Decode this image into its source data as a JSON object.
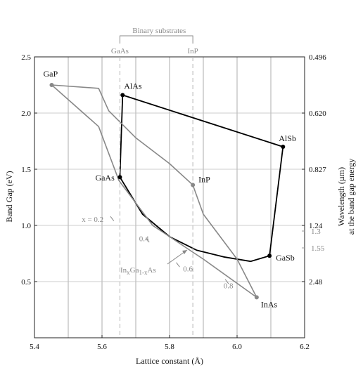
{
  "chart_data": {
    "type": "line",
    "xlabel": "Lattice constant (Å)",
    "ylabel": "Band Gap (eV)",
    "y2label_line1": "Wavelength (µm)",
    "y2label_line2": "at the band gap energy",
    "xlim": [
      5.4,
      6.2
    ],
    "ylim": [
      0.0,
      2.5
    ],
    "x_ticks": [
      "5.4",
      "5.6",
      "5.8",
      "6.0",
      "6.2"
    ],
    "y_ticks": [
      "0.5",
      "1.0",
      "1.5",
      "2.0",
      "2.5"
    ],
    "x_gridlines": [
      5.5,
      5.6,
      5.7,
      5.8,
      5.9,
      6.0,
      6.1
    ],
    "y_gridlines": [
      0.5,
      1.0,
      1.5,
      2.0
    ],
    "right_axis": {
      "black": [
        {
          "y": 2.5,
          "label": "0.496"
        },
        {
          "y": 2.0,
          "label": "0.620"
        },
        {
          "y": 1.5,
          "label": "0.827"
        },
        {
          "y": 1.0,
          "label": "1.24"
        },
        {
          "y": 0.5,
          "label": "2.48"
        }
      ],
      "gray": [
        {
          "y": 0.95,
          "label": "1.3"
        },
        {
          "y": 0.8,
          "label": "1.55"
        }
      ]
    },
    "binary_substrates": {
      "title": "Binary substrates",
      "items": [
        {
          "label": "GaAs",
          "x": 5.653
        },
        {
          "label": "InP",
          "x": 5.869
        }
      ]
    },
    "points": [
      {
        "label": "GaP",
        "x": 5.451,
        "y": 2.25
      },
      {
        "label": "AlAs",
        "x": 5.661,
        "y": 2.16
      },
      {
        "label": "AlSb",
        "x": 6.136,
        "y": 1.7
      },
      {
        "label": "GaAs",
        "x": 5.653,
        "y": 1.43
      },
      {
        "label": "InP",
        "x": 5.869,
        "y": 1.36
      },
      {
        "label": "GaSb",
        "x": 6.096,
        "y": 0.73
      },
      {
        "label": "InAs",
        "x": 6.058,
        "y": 0.36
      }
    ],
    "series": [
      {
        "color": "#000000",
        "points": [
          [
            5.661,
            2.16
          ],
          [
            6.136,
            1.7
          ],
          [
            6.096,
            0.73
          ]
        ]
      },
      {
        "color": "#000000",
        "points": [
          [
            5.661,
            2.16
          ],
          [
            5.653,
            1.43
          ]
        ]
      },
      {
        "color": "#000000",
        "points": [
          [
            5.653,
            1.43
          ],
          [
            5.72,
            1.1
          ],
          [
            5.8,
            0.9
          ],
          [
            5.88,
            0.78
          ],
          [
            5.96,
            0.72
          ],
          [
            6.04,
            0.68
          ],
          [
            6.096,
            0.73
          ]
        ]
      },
      {
        "color": "#888888",
        "points": [
          [
            5.451,
            2.25
          ],
          [
            5.59,
            2.22
          ],
          [
            5.62,
            2.02
          ],
          [
            5.7,
            1.78
          ],
          [
            5.8,
            1.55
          ],
          [
            5.869,
            1.36
          ]
        ]
      },
      {
        "color": "#888888",
        "points": [
          [
            5.451,
            2.25
          ],
          [
            5.59,
            1.88
          ],
          [
            5.65,
            1.4
          ],
          [
            5.75,
            1.0
          ],
          [
            5.9,
            0.7
          ],
          [
            6.058,
            0.36
          ]
        ]
      },
      {
        "color": "#888888",
        "points": [
          [
            5.869,
            1.36
          ],
          [
            5.9,
            1.1
          ],
          [
            5.95,
            0.9
          ],
          [
            6.0,
            0.7
          ],
          [
            6.058,
            0.36
          ]
        ]
      }
    ],
    "annotations": {
      "x_labels": [
        {
          "label": "x = 0.2",
          "x": 5.54,
          "y": 1.03
        },
        {
          "label": "0.4",
          "x": 5.71,
          "y": 0.86
        },
        {
          "label": "0.6",
          "x": 5.84,
          "y": 0.59
        },
        {
          "label": "0.8",
          "x": 5.96,
          "y": 0.44
        }
      ],
      "ingaas_label": "In x Ga 1-x As",
      "ingaas_parts": {
        "a": "In",
        "b": "x",
        "c": "Ga",
        "d": "1-x",
        "e": "As"
      }
    }
  }
}
